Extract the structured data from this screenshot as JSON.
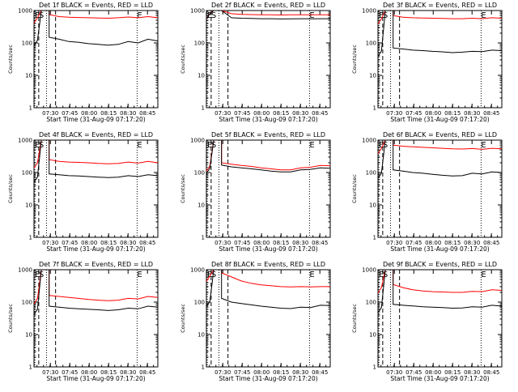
{
  "chart_data": {
    "type": "line",
    "y_scale": "log",
    "ylim": [
      1,
      1000
    ],
    "y_tick_labels": [
      "1",
      "10",
      "100",
      "1000"
    ],
    "x_tick_labels": [
      "07:30",
      "07:45",
      "08:00",
      "08:15",
      "08:30",
      "08:45"
    ],
    "x_range": [
      "07:17:20",
      "08:53"
    ],
    "xlabel": "Start Time (31-Aug-09 07:17:20)",
    "ylabel": "Counts/sec",
    "markers": [
      {
        "label": "E",
        "time": "07:18",
        "style": "dotted"
      },
      {
        "label": "S",
        "time": "07:21",
        "style": "dashed"
      },
      {
        "label": "",
        "time": "07:27",
        "style": "dotted"
      },
      {
        "label": "",
        "time": "07:34",
        "style": "dashed"
      },
      {
        "label": "E",
        "time": "08:37",
        "style": "dotted"
      }
    ],
    "series_colors": {
      "events": "#000000",
      "lld": "#ff0000"
    },
    "panels": [
      {
        "title": "Det 1f BLACK = Events, RED = LLD",
        "events": [
          1000,
          150,
          130,
          110,
          105,
          95,
          90,
          85,
          90,
          110,
          100,
          130,
          115
        ],
        "lld": [
          1000,
          750,
          650,
          620,
          610,
          600,
          590,
          580,
          600,
          630,
          600,
          650,
          600
        ]
      },
      {
        "title": "Det 2f BLACK = Events, RED = LLD",
        "events": [
          1000,
          1000,
          600,
          580,
          570,
          560,
          560,
          550,
          555,
          560,
          555,
          560,
          560
        ],
        "lld": [
          1000,
          1000,
          800,
          760,
          750,
          740,
          740,
          730,
          735,
          740,
          735,
          740,
          740
        ]
      },
      {
        "title": "Det 3f BLACK = Events, RED = LLD",
        "events": [
          1000,
          70,
          65,
          60,
          58,
          55,
          53,
          50,
          52,
          55,
          54,
          60,
          58
        ],
        "lld": [
          1000,
          700,
          620,
          600,
          590,
          580,
          570,
          560,
          560,
          580,
          560,
          600,
          580
        ]
      },
      {
        "title": "Det 4f BLACK = Events, RED = LLD",
        "events": [
          1000,
          90,
          85,
          80,
          78,
          75,
          72,
          70,
          72,
          80,
          75,
          85,
          80
        ],
        "lld": [
          1000,
          250,
          220,
          210,
          205,
          200,
          190,
          185,
          190,
          210,
          195,
          220,
          200
        ]
      },
      {
        "title": "Det 5f BLACK = Events, RED = LLD",
        "events": [
          1000,
          170,
          150,
          140,
          130,
          120,
          110,
          105,
          105,
          120,
          125,
          140,
          135
        ],
        "lld": [
          1000,
          200,
          180,
          165,
          155,
          140,
          130,
          120,
          120,
          140,
          145,
          165,
          160
        ]
      },
      {
        "title": "Det 6f BLACK = Events, RED = LLD",
        "events": [
          1000,
          120,
          110,
          100,
          95,
          88,
          82,
          78,
          80,
          95,
          90,
          105,
          100
        ],
        "lld": [
          1000,
          700,
          650,
          620,
          600,
          580,
          560,
          540,
          530,
          550,
          520,
          560,
          540
        ]
      },
      {
        "title": "Det 7f BLACK = Events, RED = LLD",
        "events": [
          1000,
          75,
          70,
          65,
          62,
          60,
          58,
          55,
          58,
          65,
          62,
          75,
          70
        ],
        "lld": [
          1000,
          160,
          150,
          140,
          130,
          120,
          115,
          110,
          115,
          130,
          125,
          150,
          140
        ]
      },
      {
        "title": "Det 8f BLACK = Events, RED = LLD",
        "events": [
          1000,
          130,
          100,
          90,
          82,
          75,
          70,
          65,
          63,
          70,
          68,
          80,
          78
        ],
        "lld": [
          1000,
          800,
          600,
          450,
          380,
          340,
          320,
          300,
          295,
          300,
          295,
          300,
          300
        ]
      },
      {
        "title": "Det 9f BLACK = Events, RED = LLD",
        "events": [
          1000,
          85,
          80,
          76,
          72,
          70,
          68,
          65,
          66,
          72,
          70,
          80,
          75
        ],
        "lld": [
          1000,
          350,
          280,
          240,
          220,
          210,
          205,
          200,
          200,
          215,
          210,
          240,
          230
        ]
      }
    ]
  }
}
